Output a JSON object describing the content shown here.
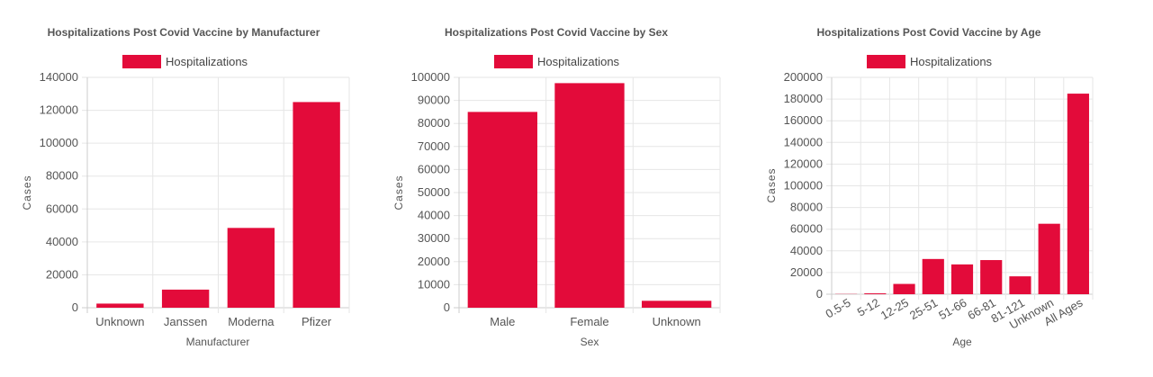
{
  "colors": {
    "bar": "#E30B3A",
    "grid": "#e6e6e6",
    "axis": "#cccccc",
    "text": "#555555"
  },
  "chart_data": [
    {
      "type": "bar",
      "title": "Hospitalizations Post Covid Vaccine by Manufacturer",
      "legend": "Hospitalizations",
      "xlabel": "Manufacturer",
      "ylabel": "Cases",
      "categories": [
        "Unknown",
        "Janssen",
        "Moderna",
        "Pfizer"
      ],
      "values": [
        2500,
        11000,
        48500,
        125000
      ],
      "ylim": [
        0,
        140000
      ],
      "yticks": [
        0,
        20000,
        40000,
        60000,
        80000,
        100000,
        120000,
        140000
      ],
      "ytick_labels": [
        "0",
        "20000",
        "40000",
        "60000",
        "80000",
        "100000",
        "120000",
        "140000"
      ],
      "grid": true,
      "legend_position": "top"
    },
    {
      "type": "bar",
      "title": "Hospitalizations Post Covid Vaccine by Sex",
      "legend": "Hospitalizations",
      "xlabel": "Sex",
      "ylabel": "Cases",
      "categories": [
        "Male",
        "Female",
        "Unknown"
      ],
      "values": [
        85000,
        97500,
        3000
      ],
      "ylim": [
        0,
        100000
      ],
      "yticks": [
        0,
        10000,
        20000,
        30000,
        40000,
        50000,
        60000,
        70000,
        80000,
        90000,
        100000
      ],
      "ytick_labels": [
        "0",
        "10000",
        "20000",
        "30000",
        "40000",
        "50000",
        "60000",
        "70000",
        "80000",
        "90000",
        "100000"
      ],
      "grid": true,
      "legend_position": "top"
    },
    {
      "type": "bar",
      "title": "Hospitalizations Post Covid Vaccine by Age",
      "legend": "Hospitalizations",
      "xlabel": "Age",
      "ylabel": "Cases",
      "categories": [
        "0.5-5",
        "5-12",
        "12-25",
        "25-51",
        "51-66",
        "66-81",
        "81-121",
        "Unknown",
        "All Ages"
      ],
      "values": [
        200,
        800,
        9500,
        32500,
        27500,
        31500,
        16500,
        65000,
        185000
      ],
      "ylim": [
        0,
        200000
      ],
      "yticks": [
        0,
        20000,
        40000,
        60000,
        80000,
        100000,
        120000,
        140000,
        160000,
        180000,
        200000
      ],
      "ytick_labels": [
        "0",
        "20000",
        "40000",
        "60000",
        "80000",
        "100000",
        "120000",
        "140000",
        "160000",
        "180000",
        "200000"
      ],
      "grid": true,
      "legend_position": "top"
    }
  ]
}
